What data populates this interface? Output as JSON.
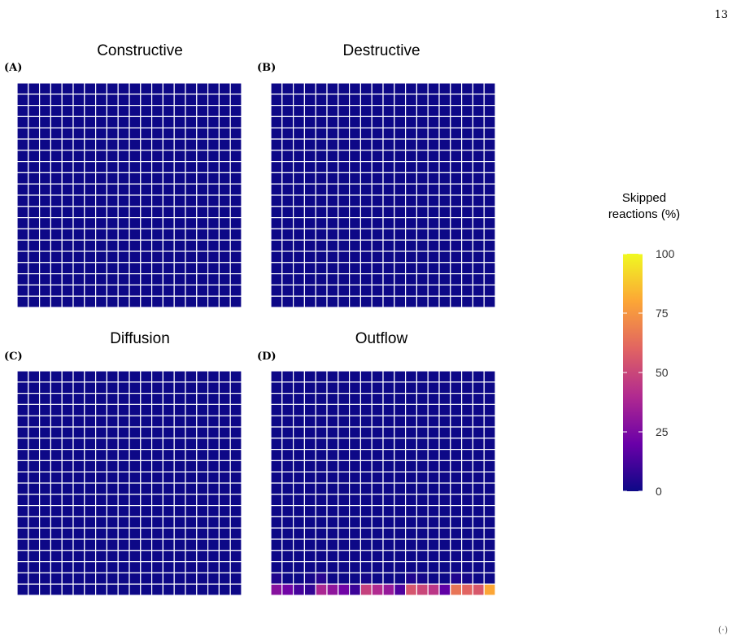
{
  "page": {
    "page_number": "13",
    "footer_mark": "(·)"
  },
  "chart_data": [
    {
      "type": "heatmap",
      "title": "Constructive",
      "panel_label": "(A)",
      "grid": {
        "rows": 20,
        "cols": 20
      },
      "default_value": 0,
      "nonzero_cells": []
    },
    {
      "type": "heatmap",
      "title": "Destructive",
      "panel_label": "(B)",
      "grid": {
        "rows": 20,
        "cols": 20
      },
      "default_value": 0,
      "nonzero_cells": []
    },
    {
      "type": "heatmap",
      "title": "Diffusion",
      "panel_label": "(C)",
      "grid": {
        "rows": 20,
        "cols": 20
      },
      "default_value": 0,
      "nonzero_cells": []
    },
    {
      "type": "heatmap",
      "title": "Outflow",
      "panel_label": "(D)",
      "grid": {
        "rows": 20,
        "cols": 20
      },
      "default_value": 0,
      "nonzero_cells": [
        {
          "row": 18,
          "col": 0,
          "value": 4
        },
        {
          "row": 18,
          "col": 3,
          "value": 2
        },
        {
          "row": 18,
          "col": 4,
          "value": 6
        },
        {
          "row": 18,
          "col": 8,
          "value": 2
        },
        {
          "row": 18,
          "col": 12,
          "value": 4
        },
        {
          "row": 18,
          "col": 13,
          "value": 2
        },
        {
          "row": 18,
          "col": 16,
          "value": 4
        },
        {
          "row": 18,
          "col": 17,
          "value": 2
        },
        {
          "row": 19,
          "col": 0,
          "value": 28
        },
        {
          "row": 19,
          "col": 1,
          "value": 22
        },
        {
          "row": 19,
          "col": 2,
          "value": 12
        },
        {
          "row": 19,
          "col": 3,
          "value": 8
        },
        {
          "row": 19,
          "col": 4,
          "value": 38
        },
        {
          "row": 19,
          "col": 5,
          "value": 30
        },
        {
          "row": 19,
          "col": 6,
          "value": 22
        },
        {
          "row": 19,
          "col": 7,
          "value": 10
        },
        {
          "row": 19,
          "col": 8,
          "value": 48
        },
        {
          "row": 19,
          "col": 9,
          "value": 40
        },
        {
          "row": 19,
          "col": 10,
          "value": 32
        },
        {
          "row": 19,
          "col": 11,
          "value": 14
        },
        {
          "row": 19,
          "col": 12,
          "value": 55
        },
        {
          "row": 19,
          "col": 13,
          "value": 50
        },
        {
          "row": 19,
          "col": 14,
          "value": 44
        },
        {
          "row": 19,
          "col": 15,
          "value": 18
        },
        {
          "row": 19,
          "col": 16,
          "value": 65
        },
        {
          "row": 19,
          "col": 17,
          "value": 60
        },
        {
          "row": 19,
          "col": 18,
          "value": 56
        },
        {
          "row": 19,
          "col": 19,
          "value": 80
        }
      ]
    }
  ],
  "legend": {
    "title_line1": "Skipped",
    "title_line2": "reactions (%)",
    "range": [
      0,
      100
    ],
    "ticks": [
      "0",
      "25",
      "50",
      "75",
      "100"
    ],
    "colormap": "plasma",
    "stops": [
      "#0d0887",
      "#6a00a8",
      "#b12a90",
      "#e16462",
      "#fca636",
      "#f0f921"
    ]
  }
}
